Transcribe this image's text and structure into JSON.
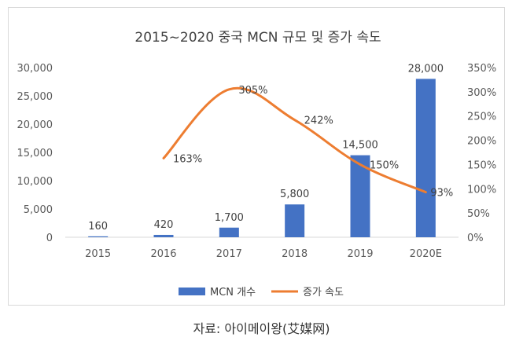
{
  "caption": "자료: 아이메이왕(艾媒网)",
  "chart_data": {
    "type": "bar",
    "title": "2015~2020 중국 MCN 규모 및 증가 속도",
    "categories": [
      "2015",
      "2016",
      "2017",
      "2018",
      "2019",
      "2020E"
    ],
    "y_ticks": [
      "0",
      "5,000",
      "10,000",
      "15,000",
      "20,000",
      "25,000",
      "30,000"
    ],
    "y2_ticks": [
      "0%",
      "50%",
      "100%",
      "150%",
      "200%",
      "250%",
      "300%",
      "350%"
    ],
    "ylim": [
      0,
      30000
    ],
    "y2lim": [
      0,
      350
    ],
    "grid": false,
    "legend_position": "bottom",
    "series": [
      {
        "name": "MCN 개수",
        "type": "bar",
        "axis": "left",
        "color": "#4472c4",
        "values": [
          160,
          420,
          1700,
          5800,
          14500,
          28000
        ],
        "labels": [
          "160",
          "420",
          "1,700",
          "5,800",
          "14,500",
          "28,000"
        ]
      },
      {
        "name": "증가 속도",
        "type": "line",
        "axis": "right",
        "color": "#ed7d31",
        "values": [
          null,
          163,
          305,
          242,
          150,
          93
        ],
        "labels": [
          "",
          "163%",
          "305%",
          "242%",
          "150%",
          "93%"
        ]
      }
    ]
  }
}
